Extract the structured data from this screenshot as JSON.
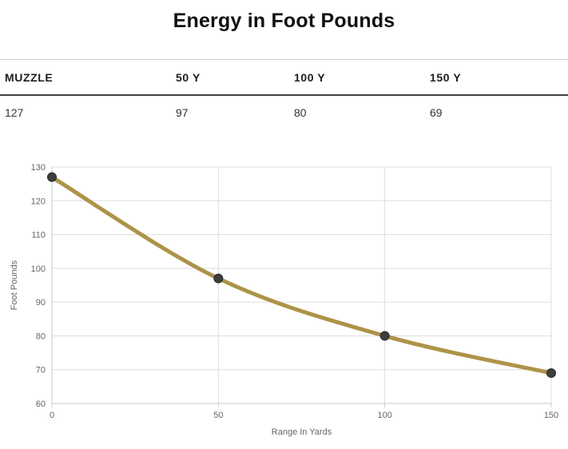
{
  "title": "Energy in Foot Pounds",
  "table": {
    "headers": [
      "MUZZLE",
      "50 Y",
      "100 Y",
      "150 Y"
    ],
    "values": [
      "127",
      "97",
      "80",
      "69"
    ]
  },
  "chart_data": {
    "type": "line",
    "title": "",
    "x": [
      0,
      50,
      100,
      150
    ],
    "series": [
      {
        "name": "Foot Pounds",
        "values": [
          127,
          97,
          80,
          69
        ]
      }
    ],
    "xlabel": "Range In Yards",
    "ylabel": "Foot Pounds",
    "xlim": [
      0,
      150
    ],
    "ylim": [
      60,
      130
    ],
    "xticks": [
      0,
      50,
      100,
      150
    ],
    "yticks": [
      60,
      70,
      80,
      90,
      100,
      110,
      120,
      130
    ],
    "grid": true,
    "legend": false,
    "colors": {
      "line": "#ad9348",
      "marker_fill": "#3e3e3e",
      "marker_stroke": "#2a2a2a",
      "gridline": "#dddddd",
      "axis": "#c8c8c8",
      "tick_label": "#666666",
      "axis_title": "#666666"
    }
  }
}
